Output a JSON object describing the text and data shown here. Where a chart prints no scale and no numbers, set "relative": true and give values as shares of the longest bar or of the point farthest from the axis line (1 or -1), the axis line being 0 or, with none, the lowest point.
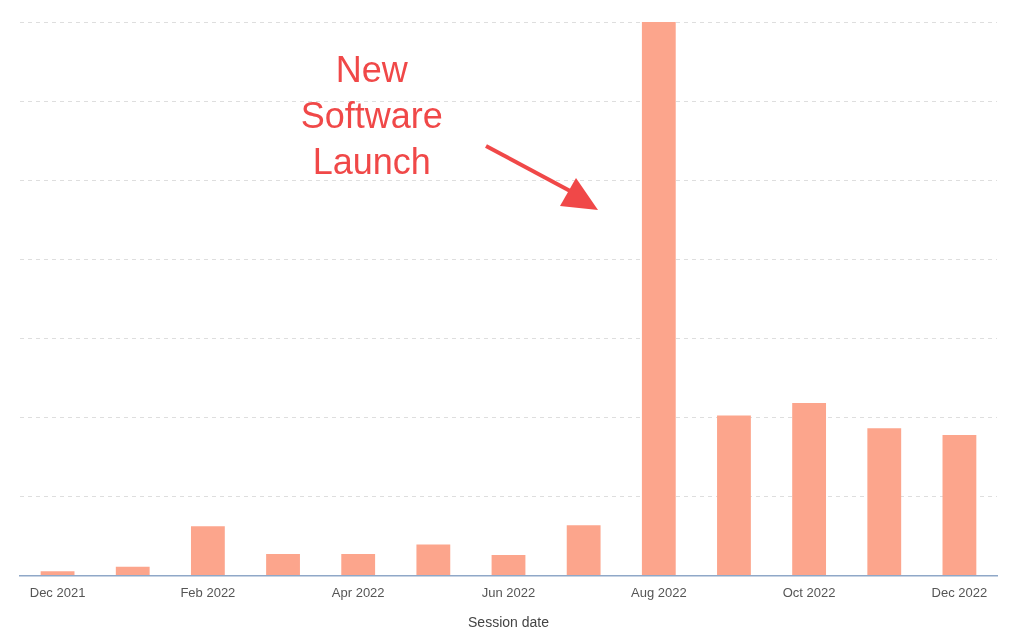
{
  "chart_data": {
    "type": "bar",
    "xlabel": "Session date",
    "relative": true,
    "grid": "y",
    "categories": [
      "Dec 2021",
      null,
      "Feb 2022",
      null,
      "Apr 2022",
      null,
      "Jun 2022",
      null,
      "Aug 2022",
      null,
      "Oct 2022",
      null,
      "Dec 2022"
    ],
    "values": [
      0.008,
      0.016,
      0.089,
      0.039,
      0.039,
      0.056,
      0.037,
      0.091,
      1,
      0.289,
      0.312,
      0.266,
      0.254
    ],
    "color": "#fca58c",
    "annotations": [
      "New Software Launch"
    ]
  }
}
